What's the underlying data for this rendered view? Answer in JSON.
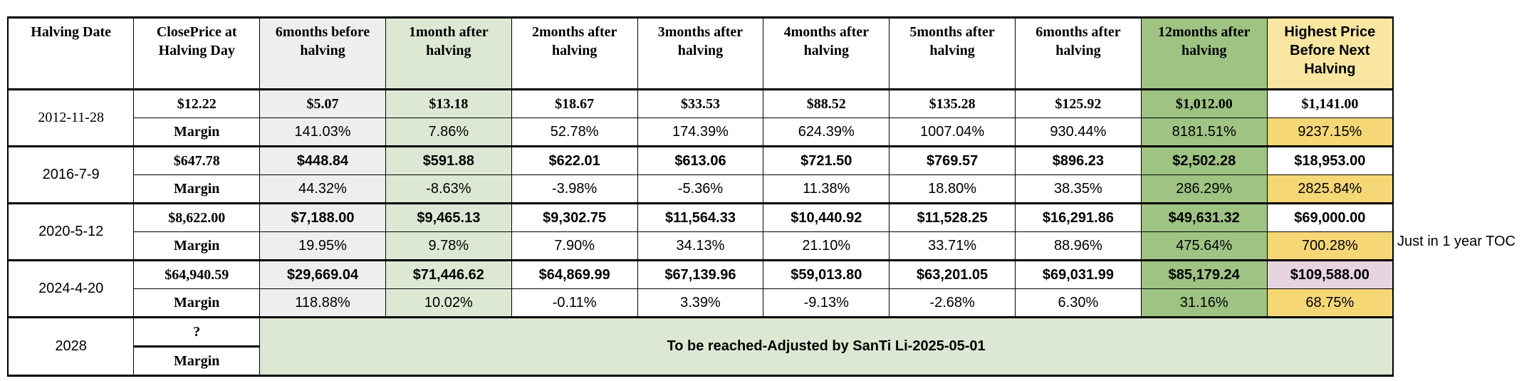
{
  "headers": [
    "Halving Date",
    "ClosePrice at Halving Day",
    "6months before halving",
    "1month after halving",
    "2months after halving",
    "3months after halving",
    "4months after halving",
    "5months after halving",
    "6months after halving",
    "12months after halving",
    "Highest Price Before Next Halving"
  ],
  "rows": [
    {
      "date": "2012-11-28",
      "prices": [
        "$12.22",
        "$5.07",
        "$13.18",
        "$18.67",
        "$33.53",
        "$88.52",
        "$135.28",
        "$125.92",
        "$1,012.00",
        "$1,141.00"
      ],
      "margin_label": "Margin",
      "margins": [
        "141.03%",
        "7.86%",
        "52.78%",
        "174.39%",
        "624.39%",
        "1007.04%",
        "930.44%",
        "8181.51%",
        "9237.15%"
      ]
    },
    {
      "date": "2016-7-9",
      "prices": [
        "$647.78",
        "$448.84",
        "$591.88",
        "$622.01",
        "$613.06",
        "$721.50",
        "$769.57",
        "$896.23",
        "$2,502.28",
        "$18,953.00"
      ],
      "margin_label": "Margin",
      "margins": [
        "44.32%",
        "-8.63%",
        "-3.98%",
        "-5.36%",
        "11.38%",
        "18.80%",
        "38.35%",
        "286.29%",
        "2825.84%"
      ]
    },
    {
      "date": "2020-5-12",
      "prices": [
        "$8,622.00",
        "$7,188.00",
        "$9,465.13",
        "$9,302.75",
        "$11,564.33",
        "$10,440.92",
        "$11,528.25",
        "$16,291.86",
        "$49,631.32",
        "$69,000.00"
      ],
      "margin_label": "Margin",
      "margins": [
        "19.95%",
        "9.78%",
        "7.90%",
        "34.13%",
        "21.10%",
        "33.71%",
        "88.96%",
        "475.64%",
        "700.28%"
      ]
    },
    {
      "date": "2024-4-20",
      "prices": [
        "$64,940.59",
        "$29,669.04",
        "$71,446.62",
        "$64,869.99",
        "$67,139.96",
        "$59,013.80",
        "$63,201.05",
        "$69,031.99",
        "$85,179.24",
        "$109,588.00"
      ],
      "margin_label": "Margin",
      "margins": [
        "118.88%",
        "10.02%",
        "-0.11%",
        "3.39%",
        "-9.13%",
        "-2.68%",
        "6.30%",
        "31.16%",
        "68.75%"
      ]
    }
  ],
  "future": {
    "date": "2028",
    "price": "?",
    "margin_label": "Margin",
    "note": "To be reached-Adjusted by SanTi Li-2025-05-01"
  },
  "side_note": "Just in 1 year TOC",
  "colors": {
    "gray": "#eeeeee",
    "light_green": "#dde8d4",
    "green": "#9ec383",
    "light_yellow": "#f8e6a1",
    "yellow": "#f6d776",
    "pink": "#e6d4df"
  }
}
